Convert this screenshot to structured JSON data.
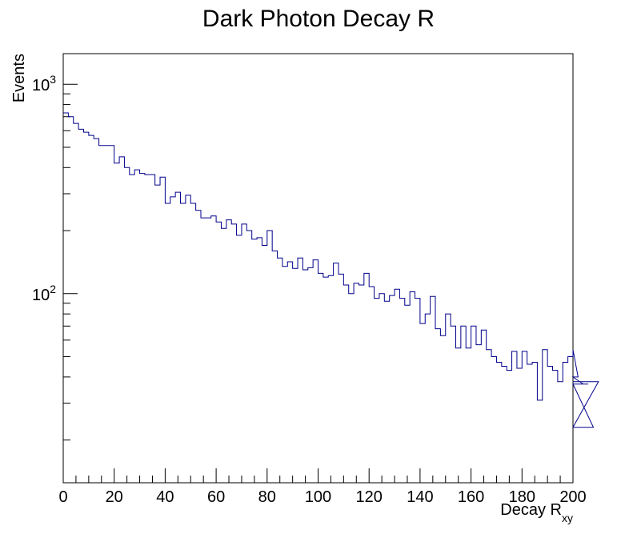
{
  "chart_data": {
    "type": "histogram",
    "title": "Dark Photon Decay R",
    "xlabel": "Decay R",
    "xlabel_subscript": "xy",
    "ylabel": "Events",
    "yscale": "log",
    "xlim": [
      0,
      200
    ],
    "ylim": [
      12.5,
      1400
    ],
    "x_ticks": [
      0,
      20,
      40,
      60,
      80,
      100,
      120,
      140,
      160,
      180,
      200
    ],
    "x_tick_labels": [
      "0",
      "20",
      "40",
      "60",
      "80",
      "100",
      "120",
      "140",
      "160",
      "180",
      "200"
    ],
    "y_decades": [
      {
        "value": 100,
        "base": "10",
        "exp": "2"
      },
      {
        "value": 1000,
        "base": "10",
        "exp": "3"
      }
    ],
    "bin_width": 2,
    "line_color": "#00008b",
    "values": [
      730,
      700,
      650,
      610,
      590,
      570,
      550,
      510,
      510,
      510,
      420,
      450,
      400,
      370,
      390,
      375,
      370,
      370,
      330,
      360,
      270,
      290,
      305,
      270,
      295,
      270,
      250,
      230,
      230,
      235,
      220,
      205,
      225,
      215,
      190,
      215,
      200,
      182,
      185,
      170,
      200,
      160,
      148,
      135,
      142,
      132,
      148,
      130,
      133,
      145,
      125,
      120,
      122,
      140,
      124,
      110,
      100,
      112,
      110,
      125,
      108,
      95,
      100,
      92,
      98,
      105,
      95,
      88,
      102,
      95,
      72,
      80,
      97,
      68,
      63,
      80,
      70,
      55,
      70,
      55,
      70,
      57,
      67,
      54,
      50,
      47,
      45,
      43,
      53,
      44,
      53,
      46,
      47,
      31,
      54,
      45,
      43,
      38,
      47,
      50,
      54,
      40,
      37,
      37,
      23,
      38
    ]
  }
}
